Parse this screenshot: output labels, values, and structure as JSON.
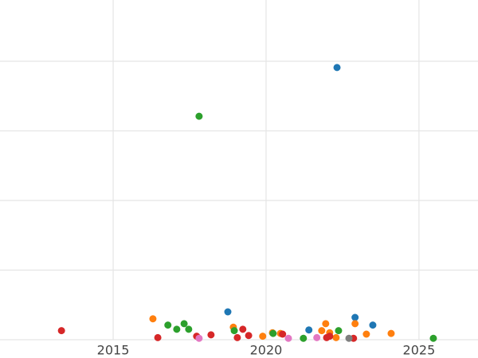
{
  "chart_data": {
    "type": "scatter",
    "xlim": [
      2011.3,
      2026.93
    ],
    "xticks": [
      2015,
      2020,
      2025
    ],
    "ylim": [
      0,
      4.88
    ],
    "yticks": [
      0,
      1,
      2,
      3,
      4
    ],
    "ytick_labels": false,
    "grid": true,
    "series": [
      {
        "color": "#1f77b4",
        "x": [
          2022.32,
          2018.75,
          2022.91,
          2023.49,
          2021.4
        ],
        "values": [
          3.91,
          0.4,
          0.32,
          0.21,
          0.14
        ]
      },
      {
        "color": "#ff7f0e",
        "x": [
          2016.3,
          2018.93,
          2019.89,
          2020.21,
          2021.95,
          2021.82,
          2022.08,
          2022.29,
          2022.91,
          2023.28,
          2024.09,
          2020.47
        ],
        "values": [
          0.3,
          0.18,
          0.05,
          0.1,
          0.23,
          0.13,
          0.1,
          0.03,
          0.23,
          0.08,
          0.09,
          0.09
        ]
      },
      {
        "color": "#2ca02c",
        "x": [
          2017.81,
          2016.79,
          2017.08,
          2017.32,
          2017.47,
          2018.96,
          2020.23,
          2021.22,
          2022.37,
          2025.47
        ],
        "values": [
          3.21,
          0.21,
          0.15,
          0.23,
          0.15,
          0.13,
          0.09,
          0.02,
          0.13,
          0.02
        ]
      },
      {
        "color": "#d62728",
        "x": [
          2013.31,
          2016.46,
          2018.2,
          2017.73,
          2019.24,
          2019.06,
          2019.43,
          2020.54,
          2021.98,
          2022.08,
          2022.86
        ],
        "values": [
          0.13,
          0.03,
          0.07,
          0.05,
          0.15,
          0.03,
          0.06,
          0.08,
          0.03,
          0.05,
          0.02
        ]
      },
      {
        "color": "#e377c2",
        "x": [
          2017.81,
          2020.73,
          2021.66
        ],
        "values": [
          0.02,
          0.02,
          0.03
        ]
      },
      {
        "color": "#7f7f7f",
        "x": [
          2022.71
        ],
        "values": [
          0.02
        ]
      }
    ]
  }
}
